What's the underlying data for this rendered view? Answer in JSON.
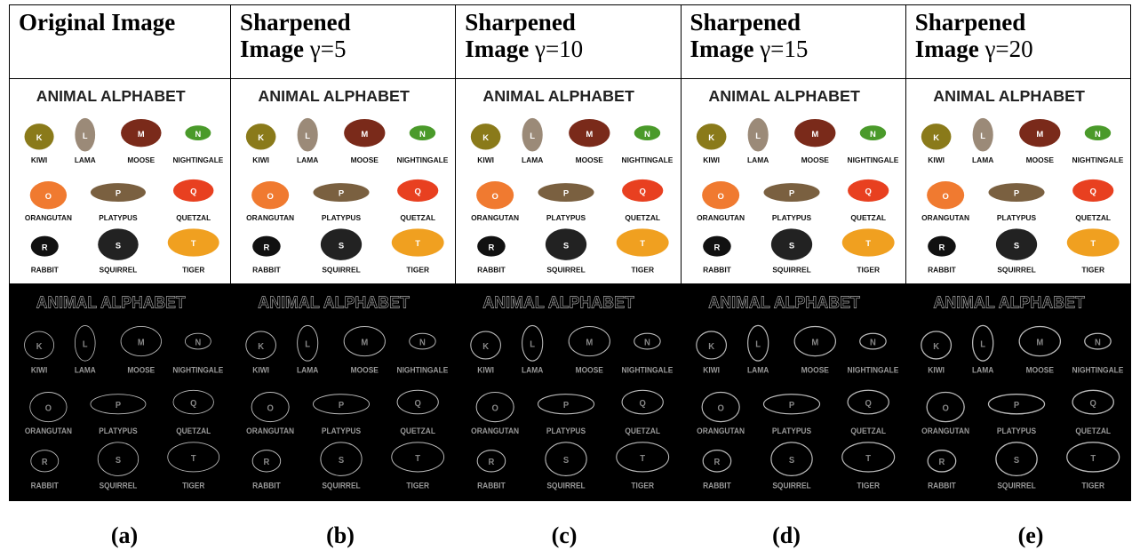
{
  "header": [
    {
      "title": [
        "Original Image"
      ]
    },
    {
      "title": [
        "Sharpened",
        "Image"
      ],
      "param": "γ=5"
    },
    {
      "title": [
        "Sharpened",
        "Image"
      ],
      "param": "γ=10"
    },
    {
      "title": [
        "Sharpened",
        "Image"
      ],
      "param": "γ=15"
    },
    {
      "title": [
        "Sharpened",
        "Image"
      ],
      "param": "γ=20"
    }
  ],
  "image": {
    "title": "ANIMAL ALPHABET",
    "animals": [
      {
        "name": "KIWI",
        "letter": "K"
      },
      {
        "name": "LAMA",
        "letter": "L"
      },
      {
        "name": "MOOSE",
        "letter": "M"
      },
      {
        "name": "NIGHTINGALE",
        "letter": "N"
      },
      {
        "name": "ORANGUTAN",
        "letter": "O"
      },
      {
        "name": "PLATYPUS",
        "letter": "P"
      },
      {
        "name": "QUETZAL",
        "letter": "Q"
      },
      {
        "name": "RABBIT",
        "letter": "R"
      },
      {
        "name": "SQUIRREL",
        "letter": "S"
      },
      {
        "name": "TIGER",
        "letter": "T"
      }
    ]
  },
  "captions": [
    "(a)",
    "(b)",
    "(c)",
    "(d)",
    "(e)"
  ]
}
